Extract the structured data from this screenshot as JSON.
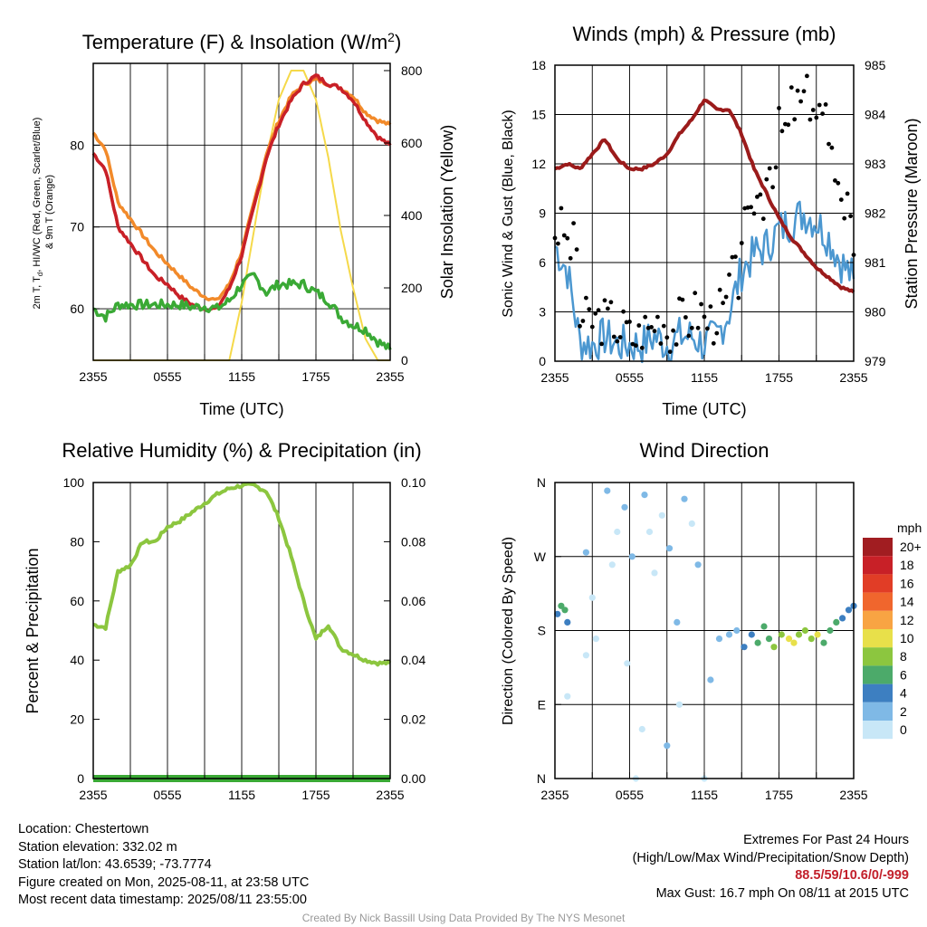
{
  "colors": {
    "temp": "#c82028",
    "dew": "#3aa935",
    "hiwc": "#e84b2c",
    "t9m": "#f28a2a",
    "solar": "#f5d94a",
    "rh": "#8cc63f",
    "precip": "#3aa935",
    "pressure": "#9b1b1b",
    "wind": "#4b97d0",
    "gust": "#000000"
  },
  "time_ticks": [
    "2355",
    "0555",
    "1155",
    "1755",
    "2355"
  ],
  "chart_data": [
    {
      "id": "temp",
      "type": "line",
      "title": "Temperature (F) & Insolation (W/m²)",
      "xlabel": "Time (UTC)",
      "ylabel": "2m T, T_d, HI/WC (Red, Green, Scarlet/Blue) & 9m T (Orange)",
      "ylabel2": "Solar Insolation (Yellow)",
      "ylim": [
        53.7,
        90
      ],
      "y2lim": [
        0,
        820
      ],
      "yticks": [
        60,
        70,
        80
      ],
      "y2ticks": [
        0,
        200,
        400,
        600,
        800
      ],
      "x": [
        0,
        1,
        2,
        3,
        4,
        5,
        6,
        7,
        8,
        9,
        10,
        11,
        12,
        13,
        14,
        15,
        16,
        17,
        18,
        19,
        20,
        21,
        22,
        23,
        24
      ],
      "series": [
        {
          "key": "t9m",
          "values": [
            81.5,
            79.5,
            73,
            71,
            69,
            67,
            65.5,
            64,
            62.5,
            61.5,
            61,
            63,
            67,
            73,
            79,
            83,
            86,
            87.5,
            88,
            87.5,
            87,
            86,
            84,
            83,
            82.5
          ]
        },
        {
          "key": "hiwc",
          "values": [
            79,
            77,
            70,
            68,
            66,
            64,
            63,
            61.5,
            60.5,
            60,
            60,
            62.5,
            66.5,
            72.5,
            78.5,
            82.5,
            85.5,
            87.5,
            88.3,
            87.5,
            87,
            85.5,
            83,
            81,
            80
          ]
        },
        {
          "key": "temp",
          "values": [
            79,
            77,
            70,
            68,
            66,
            64,
            63,
            61.5,
            60.5,
            60,
            60,
            62.5,
            66.5,
            72.5,
            78.5,
            82.5,
            85.5,
            87.5,
            88.5,
            87.5,
            87,
            85.5,
            83,
            81,
            80
          ]
        },
        {
          "key": "dew",
          "values": [
            60,
            59,
            60.5,
            60.5,
            60.5,
            60.5,
            60.5,
            60.5,
            60.2,
            60.3,
            60,
            61,
            63,
            64,
            62,
            63,
            63,
            63,
            62,
            61,
            59,
            58,
            57.5,
            56,
            55
          ]
        },
        {
          "key": "solar",
          "y2": true,
          "values": [
            0,
            0,
            0,
            0,
            0,
            0,
            0,
            0,
            0,
            0,
            0,
            0,
            160,
            360,
            560,
            720,
            800,
            800,
            720,
            560,
            360,
            200,
            60,
            0,
            0
          ]
        }
      ]
    },
    {
      "id": "wind",
      "type": "line",
      "title": "Winds (mph) & Pressure (mb)",
      "xlabel": "Time (UTC)",
      "ylabel": "Sonic Wind & Gust (Blue, Black)",
      "ylabel2": "Station Pressure (Maroon)",
      "ylim": [
        0,
        18
      ],
      "y2lim": [
        979,
        985
      ],
      "yticks": [
        0,
        3,
        6,
        9,
        12,
        15,
        18
      ],
      "y2ticks": [
        979,
        980,
        981,
        982,
        983,
        984,
        985
      ],
      "x": [
        0,
        1,
        2,
        3,
        4,
        5,
        6,
        7,
        8,
        9,
        10,
        11,
        12,
        13,
        14,
        15,
        16,
        17,
        18,
        19,
        20,
        21,
        22,
        23,
        24
      ],
      "series": [
        {
          "key": "pressure",
          "y2": true,
          "values": [
            982.9,
            983,
            982.9,
            983.2,
            983.5,
            983.1,
            982.9,
            982.9,
            983,
            983.2,
            983.6,
            983.9,
            984.3,
            984.1,
            984.1,
            983.6,
            982.9,
            982.4,
            981.9,
            981.5,
            981.2,
            980.9,
            980.7,
            980.5,
            980.4
          ]
        },
        {
          "key": "wind",
          "values": [
            7,
            5.5,
            1.2,
            1,
            1.5,
            1,
            1,
            1,
            1.5,
            1,
            1.5,
            1.5,
            1,
            1.5,
            3,
            5.5,
            6.5,
            7,
            8,
            8.5,
            9,
            8.5,
            7.5,
            6,
            5
          ]
        },
        {
          "key": "gust",
          "points": true,
          "values": [
            8,
            7,
            2.5,
            2.5,
            2.5,
            2,
            1.5,
            2,
            2.5,
            2,
            2.5,
            3,
            2.5,
            3,
            5,
            8,
            10,
            12,
            14,
            15.5,
            16,
            15,
            12,
            9.5,
            7
          ]
        }
      ]
    },
    {
      "id": "rh",
      "type": "line",
      "title": "Relative Humidity (%) & Precipitation (in)",
      "xlabel": "",
      "ylabel": "Percent & Precipitation",
      "ylim": [
        0,
        100
      ],
      "y2lim": [
        0,
        0.1
      ],
      "yticks": [
        0,
        20,
        40,
        60,
        80,
        100
      ],
      "y2ticks": [
        "0.00",
        "0.02",
        "0.04",
        "0.06",
        "0.08",
        "0.10"
      ],
      "x": [
        0,
        1,
        2,
        3,
        4,
        5,
        6,
        7,
        8,
        9,
        10,
        11,
        12,
        13,
        14,
        15,
        16,
        17,
        18,
        19,
        20,
        21,
        22,
        23,
        24
      ],
      "series": [
        {
          "key": "rh",
          "values": [
            52,
            51,
            70,
            72,
            80,
            80,
            85,
            87,
            90,
            93,
            96,
            98,
            99,
            99,
            97,
            88,
            75,
            60,
            47,
            52,
            44,
            42,
            40,
            39,
            39
          ]
        },
        {
          "key": "precip",
          "y2": true,
          "values": [
            0,
            0,
            0,
            0,
            0,
            0,
            0,
            0,
            0,
            0,
            0,
            0,
            0,
            0,
            0,
            0,
            0,
            0,
            0,
            0,
            0,
            0,
            0,
            0,
            0
          ]
        }
      ]
    },
    {
      "id": "dir",
      "type": "scatter",
      "title": "Wind Direction",
      "ylabel": "Direction (Colored By Speed)",
      "yticks": [
        "N",
        "E",
        "S",
        "W",
        "N"
      ],
      "ylim": [
        0,
        360
      ],
      "colorbar": {
        "unit": "mph",
        "labels": [
          "20+",
          "18",
          "16",
          "14",
          "12",
          "10",
          "8",
          "6",
          "4",
          "2",
          "0"
        ],
        "colors": [
          "#a11d21",
          "#c82027",
          "#e13d26",
          "#f0662d",
          "#f8a443",
          "#e8e04a",
          "#8cc63f",
          "#4caa6a",
          "#3d7fc1",
          "#7fb9e6",
          "#c8e7f7"
        ]
      },
      "points": [
        [
          0.2,
          200,
          5
        ],
        [
          0.5,
          210,
          6
        ],
        [
          1.0,
          190,
          5
        ],
        [
          0.8,
          205,
          6
        ],
        [
          2.5,
          275,
          2
        ],
        [
          3,
          220,
          1
        ],
        [
          2.5,
          150,
          1
        ],
        [
          3.3,
          170,
          1
        ],
        [
          4.2,
          350,
          2
        ],
        [
          4.6,
          260,
          1
        ],
        [
          5.0,
          300,
          1
        ],
        [
          5.6,
          330,
          2
        ],
        [
          6.2,
          270,
          2
        ],
        [
          5.8,
          140,
          1
        ],
        [
          7.2,
          345,
          2
        ],
        [
          7.6,
          300,
          1
        ],
        [
          8.0,
          250,
          1
        ],
        [
          8.6,
          320,
          1
        ],
        [
          9.2,
          280,
          2
        ],
        [
          9.8,
          190,
          2
        ],
        [
          10.4,
          340,
          2
        ],
        [
          11.0,
          310,
          1
        ],
        [
          11.5,
          260,
          2
        ],
        [
          12.0,
          0,
          1
        ],
        [
          12.5,
          120,
          2
        ],
        [
          13.2,
          170,
          3
        ],
        [
          14.0,
          175,
          3
        ],
        [
          14.6,
          180,
          3
        ],
        [
          15.2,
          160,
          4
        ],
        [
          15.8,
          175,
          5
        ],
        [
          16.3,
          165,
          6
        ],
        [
          16.8,
          185,
          7
        ],
        [
          17.2,
          170,
          7
        ],
        [
          17.6,
          160,
          8
        ],
        [
          18.2,
          175,
          9
        ],
        [
          18.8,
          170,
          10
        ],
        [
          19.2,
          165,
          10
        ],
        [
          19.6,
          175,
          8
        ],
        [
          20.1,
          180,
          8
        ],
        [
          20.6,
          170,
          9
        ],
        [
          21.1,
          175,
          10
        ],
        [
          21.6,
          165,
          7
        ],
        [
          22.1,
          180,
          6
        ],
        [
          22.6,
          190,
          6
        ],
        [
          23.1,
          195,
          5
        ],
        [
          23.6,
          205,
          5
        ],
        [
          24.0,
          210,
          4
        ],
        [
          6.5,
          0,
          1
        ],
        [
          7.0,
          60,
          1
        ],
        [
          9.0,
          40,
          2
        ],
        [
          10.0,
          90,
          1
        ],
        [
          1.0,
          100,
          1
        ]
      ]
    }
  ],
  "info": {
    "location": "Location: Chestertown",
    "elevation": "Station elevation: 332.02 m",
    "latlon": "Station lat/lon: 43.6539; -73.7774",
    "created": "Figure created on Mon, 2025-08-11, at 23:58 UTC",
    "recent": "Most recent data timestamp: 2025/08/11 23:55:00"
  },
  "extremes": {
    "heading": "Extremes For Past 24 Hours",
    "subheading": "(High/Low/Max Wind/Precipitation/Snow Depth)",
    "values": "88.5/59/10.6/0/-999",
    "gust": "Max Gust: 16.7 mph On 08/11 at 2015 UTC"
  },
  "credit": "Created By Nick Bassill Using Data Provided By The NYS Mesonet"
}
